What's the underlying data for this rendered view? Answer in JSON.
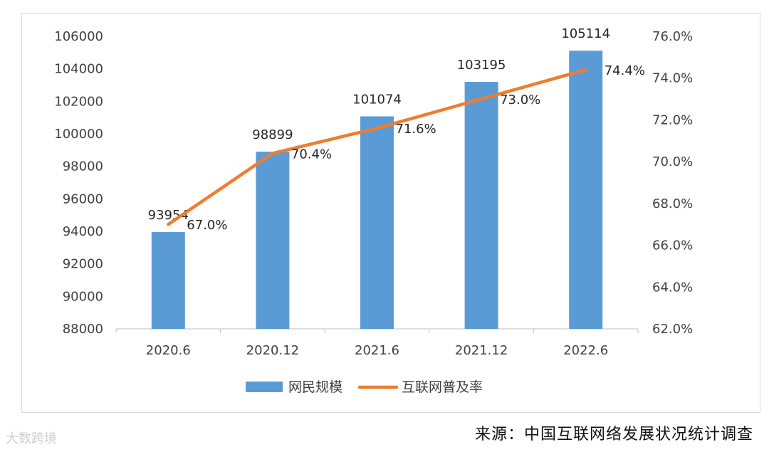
{
  "chart_data": {
    "type": "bar",
    "categories": [
      "2020.6",
      "2020.12",
      "2021.6",
      "2021.12",
      "2022.6"
    ],
    "series": [
      {
        "name": "网民规模",
        "type": "bar",
        "axis": "left",
        "values": [
          93954,
          98899,
          101074,
          103195,
          105114
        ],
        "labels": [
          "93954",
          "98899",
          "101074",
          "103195",
          "105114"
        ],
        "color": "#5B9BD5"
      },
      {
        "name": "互联网普及率",
        "type": "line",
        "axis": "right",
        "values": [
          67.0,
          70.4,
          71.6,
          73.0,
          74.4
        ],
        "labels": [
          "67.0%",
          "70.4%",
          "71.6%",
          "73.0%",
          "74.4%"
        ],
        "color": "#ED7D31"
      }
    ],
    "y_left": {
      "min": 88000,
      "max": 106000,
      "ticks": [
        "88000",
        "90000",
        "92000",
        "94000",
        "96000",
        "98000",
        "100000",
        "102000",
        "104000",
        "106000"
      ]
    },
    "y_right": {
      "min": 62.0,
      "max": 76.0,
      "ticks": [
        "62.0%",
        "64.0%",
        "66.0%",
        "68.0%",
        "70.0%",
        "72.0%",
        "74.0%",
        "76.0%"
      ]
    },
    "grid": false,
    "legend_position": "bottom"
  },
  "source_text": "来源：中国互联网络发展状况统计调查",
  "brand_text": "大数跨境"
}
